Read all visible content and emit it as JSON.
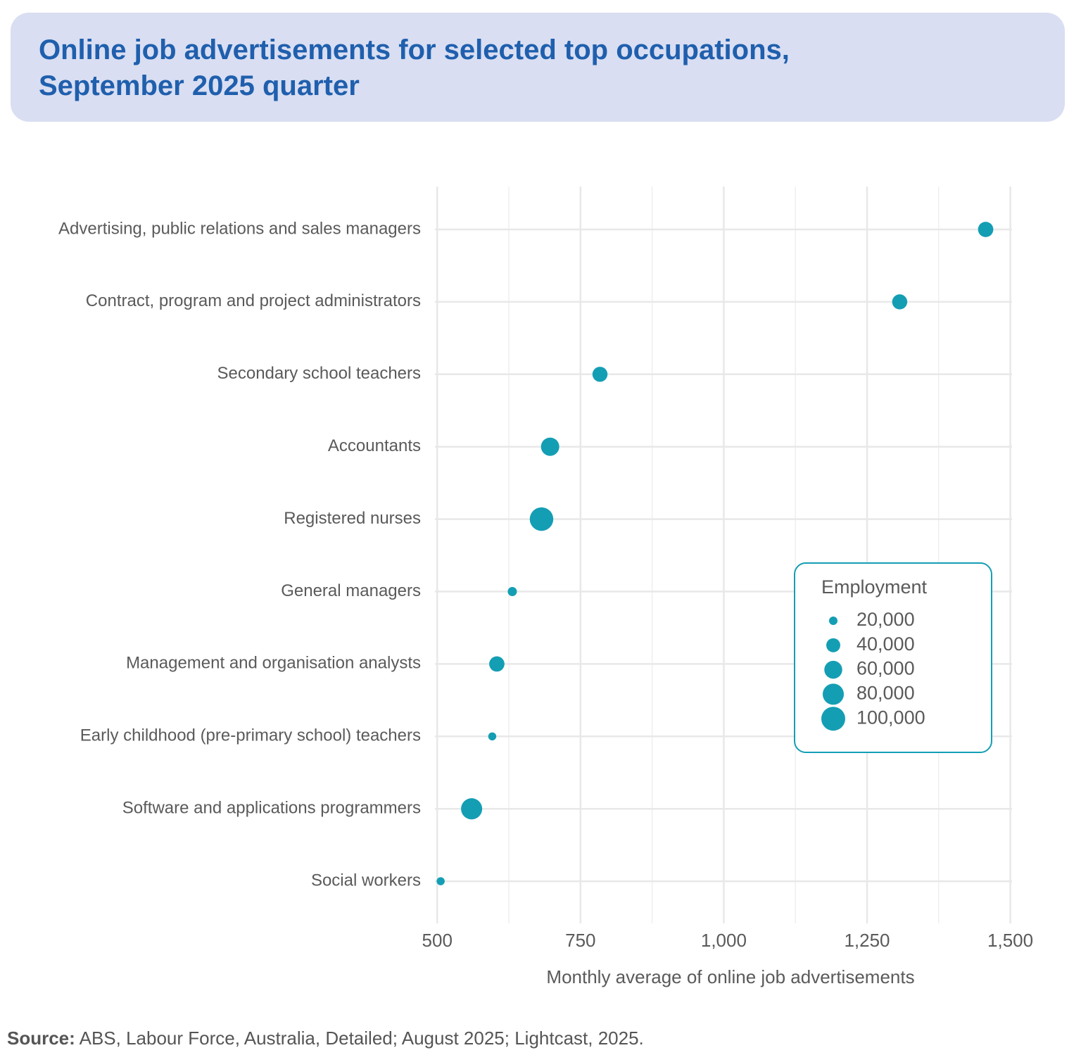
{
  "chart_data": {
    "type": "bubble",
    "title": "Online job advertisements for selected top occupations, September 2025 quarter",
    "x_label": "Monthly average of online job advertisements",
    "categories": [
      "Advertising, public relations and sales managers",
      "Contract, program and project administrators",
      "Secondary school teachers",
      "Accountants",
      "Registered nurses",
      "General managers",
      "Management and organisation analysts",
      "Early childhood (pre-primary school) teachers",
      "Software and applications programmers",
      "Social workers"
    ],
    "values": [
      1457,
      1307,
      784,
      697,
      682,
      631,
      604,
      596,
      560,
      506
    ],
    "sizes": [
      46000,
      45000,
      45000,
      62000,
      97000,
      22000,
      46000,
      19000,
      80000,
      19000
    ],
    "color": "#149eb4",
    "xlim": [
      496,
      1503
    ],
    "xticks": [
      500,
      750,
      {
        "value": 1000,
        "label": "1,000"
      },
      {
        "value": 1250,
        "label": "1,250"
      },
      {
        "value": 1500,
        "label": "1,500"
      }
    ],
    "x_minor_ticks": [
      625,
      875,
      1125,
      1375
    ],
    "grid": true,
    "size_legend": {
      "title": "Employment",
      "entries": [
        {
          "value": 20000,
          "label": "20,000"
        },
        {
          "value": 40000,
          "label": "40,000"
        },
        {
          "value": 60000,
          "label": "60,000"
        },
        {
          "value": 80000,
          "label": "80,000"
        },
        {
          "value": 100000,
          "label": "100,000"
        }
      ]
    },
    "source": {
      "label": "Source:",
      "text": "ABS, Labour Force, Australia, Detailed; August 2025; Lightcast, 2025."
    }
  }
}
